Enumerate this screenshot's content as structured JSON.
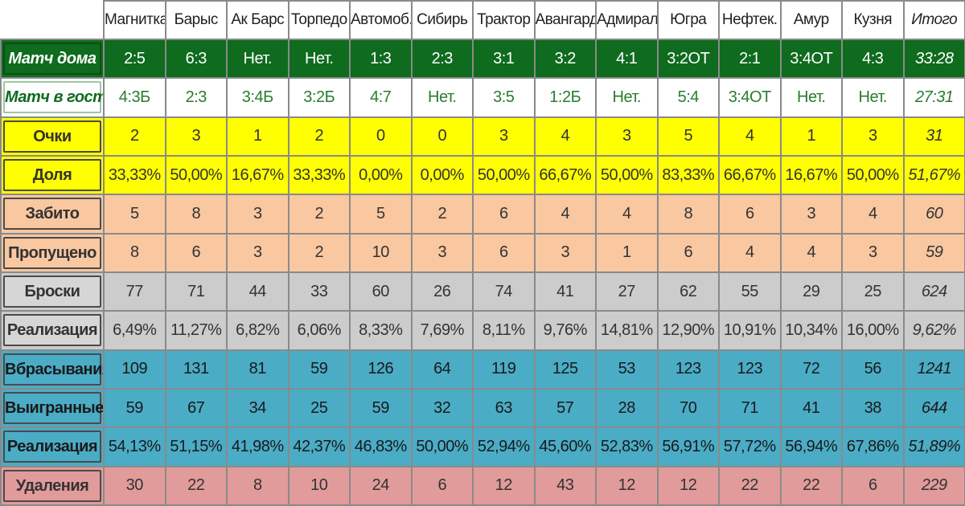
{
  "header": {
    "teams": [
      "Магнитка",
      "Барыс",
      "Ак Барс",
      "Торпедо",
      "Автомоб.",
      "Сибирь",
      "Трактор",
      "Авангард",
      "Адмирал",
      "Югра",
      "Нефтек.",
      "Амур",
      "Кузня"
    ],
    "total": "Итого"
  },
  "rows": [
    {
      "label": "Матч дома",
      "values": [
        "2:5",
        "6:3",
        "Нет.",
        "Нет.",
        "1:3",
        "2:3",
        "3:1",
        "3:2",
        "4:1",
        "3:2ОТ",
        "2:1",
        "3:4ОТ",
        "4:3"
      ],
      "total": "33:28"
    },
    {
      "label": "Матч в гостях",
      "values": [
        "4:3Б",
        "2:3",
        "3:4Б",
        "3:2Б",
        "4:7",
        "Нет.",
        "3:5",
        "1:2Б",
        "Нет.",
        "5:4",
        "3:4ОТ",
        "Нет.",
        "Нет."
      ],
      "total": "27:31"
    },
    {
      "label": "Очки",
      "values": [
        "2",
        "3",
        "1",
        "2",
        "0",
        "0",
        "3",
        "4",
        "3",
        "5",
        "4",
        "1",
        "3"
      ],
      "total": "31"
    },
    {
      "label": "Доля",
      "values": [
        "33,33%",
        "50,00%",
        "16,67%",
        "33,33%",
        "0,00%",
        "0,00%",
        "50,00%",
        "66,67%",
        "50,00%",
        "83,33%",
        "66,67%",
        "16,67%",
        "50,00%"
      ],
      "total": "51,67%"
    },
    {
      "label": "Забито",
      "values": [
        "5",
        "8",
        "3",
        "2",
        "5",
        "2",
        "6",
        "4",
        "4",
        "8",
        "6",
        "3",
        "4"
      ],
      "total": "60"
    },
    {
      "label": "Пропущено",
      "values": [
        "8",
        "6",
        "3",
        "2",
        "10",
        "3",
        "6",
        "3",
        "1",
        "6",
        "4",
        "4",
        "3"
      ],
      "total": "59"
    },
    {
      "label": "Броски",
      "values": [
        "77",
        "71",
        "44",
        "33",
        "60",
        "26",
        "74",
        "41",
        "27",
        "62",
        "55",
        "29",
        "25"
      ],
      "total": "624"
    },
    {
      "label": "Реализация",
      "values": [
        "6,49%",
        "11,27%",
        "6,82%",
        "6,06%",
        "8,33%",
        "7,69%",
        "8,11%",
        "9,76%",
        "14,81%",
        "12,90%",
        "10,91%",
        "10,34%",
        "16,00%"
      ],
      "total": "9,62%"
    },
    {
      "label": "Вбрасывания",
      "values": [
        "109",
        "131",
        "81",
        "59",
        "126",
        "64",
        "119",
        "125",
        "53",
        "123",
        "123",
        "72",
        "56"
      ],
      "total": "1241"
    },
    {
      "label": "Выигранные",
      "values": [
        "59",
        "67",
        "34",
        "25",
        "59",
        "32",
        "63",
        "57",
        "28",
        "70",
        "71",
        "41",
        "38"
      ],
      "total": "644"
    },
    {
      "label": "Реализация",
      "values": [
        "54,13%",
        "51,15%",
        "41,98%",
        "42,37%",
        "46,83%",
        "50,00%",
        "52,94%",
        "45,60%",
        "52,83%",
        "56,91%",
        "57,72%",
        "56,94%",
        "67,86%"
      ],
      "total": "51,89%"
    },
    {
      "label": "Удаления",
      "values": [
        "30",
        "22",
        "8",
        "10",
        "24",
        "6",
        "12",
        "43",
        "12",
        "12",
        "22",
        "22",
        "6"
      ],
      "total": "229"
    }
  ],
  "colors": {
    "home_row": "#0f6b1e",
    "away_text": "#2a7d2f",
    "points_rows": "#ffff00",
    "goals_rows": "#f9c7a0",
    "shots_rows": "#cccccc",
    "faceoff_rows": "#4bacc6",
    "penalty_row": "#e29b9b"
  }
}
